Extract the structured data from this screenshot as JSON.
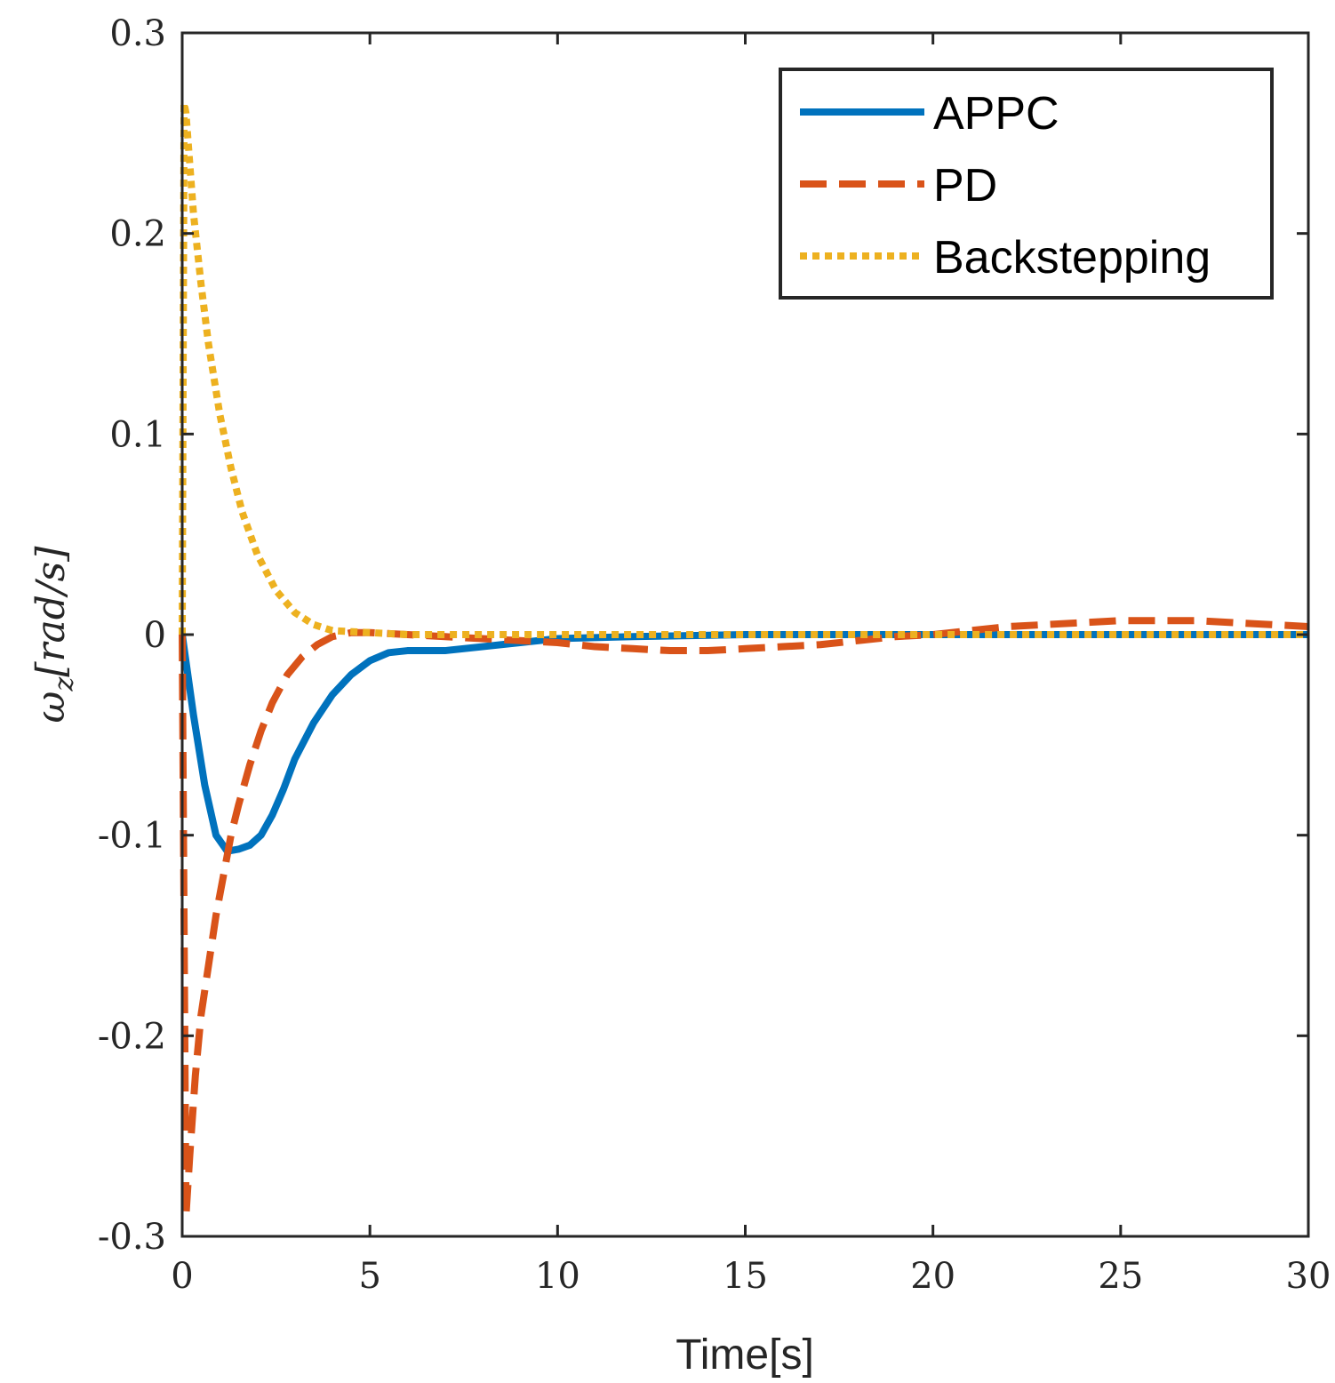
{
  "chart_data": {
    "type": "line",
    "title": "",
    "xlabel": "Time[s]",
    "ylabel": "ω_z[rad/s]",
    "ylabel_parts": {
      "symbol": "ω",
      "subscript": "z",
      "units": "[rad/s]"
    },
    "xlim": [
      0,
      30
    ],
    "ylim": [
      -0.3,
      0.3
    ],
    "xticks": [
      0,
      5,
      10,
      15,
      20,
      25,
      30
    ],
    "xtick_labels": [
      "0",
      "5",
      "10",
      "15",
      "20",
      "25",
      "30"
    ],
    "yticks": [
      -0.3,
      -0.2,
      -0.1,
      0,
      0.1,
      0.2,
      0.3
    ],
    "ytick_labels": [
      "-0.3",
      "-0.2",
      "-0.1",
      "0",
      "0.1",
      "0.2",
      "0.3"
    ],
    "grid": false,
    "legend_position": "top-right",
    "series": [
      {
        "name": "APPC",
        "color": "#0072BD",
        "style": "solid",
        "x": [
          0,
          0.3,
          0.6,
          0.9,
          1.2,
          1.5,
          1.8,
          2.1,
          2.4,
          2.7,
          3.0,
          3.5,
          4.0,
          4.5,
          5.0,
          5.5,
          6.0,
          7.0,
          8.0,
          9.0,
          10.0,
          12.0,
          15.0,
          18.0,
          20.0,
          22.0,
          25.0,
          28.0,
          30.0
        ],
        "values": [
          0,
          -0.04,
          -0.075,
          -0.1,
          -0.108,
          -0.107,
          -0.105,
          -0.1,
          -0.09,
          -0.077,
          -0.062,
          -0.044,
          -0.03,
          -0.02,
          -0.013,
          -0.009,
          -0.008,
          -0.008,
          -0.006,
          -0.004,
          -0.002,
          -0.001,
          0.0,
          0.0,
          0.0,
          0.0,
          0.0,
          0.0,
          0.0
        ]
      },
      {
        "name": "PD",
        "color": "#D95319",
        "style": "dashed",
        "x": [
          0,
          0.1,
          0.2,
          0.35,
          0.5,
          0.7,
          0.9,
          1.1,
          1.3,
          1.5,
          1.8,
          2.1,
          2.4,
          2.8,
          3.2,
          3.6,
          4.0,
          4.5,
          5.0,
          6.0,
          7.0,
          8.0,
          9.0,
          10.0,
          11.0,
          12.0,
          13.0,
          14.0,
          15.0,
          16.0,
          17.0,
          18.0,
          19.0,
          20.0,
          21.0,
          22.0,
          23.0,
          24.0,
          25.0,
          26.0,
          27.0,
          28.0,
          29.0,
          30.0
        ],
        "values": [
          0,
          -0.29,
          -0.26,
          -0.22,
          -0.19,
          -0.165,
          -0.14,
          -0.12,
          -0.1,
          -0.085,
          -0.065,
          -0.048,
          -0.034,
          -0.02,
          -0.011,
          -0.005,
          -0.001,
          0.001,
          0.001,
          0.0,
          -0.001,
          -0.002,
          -0.003,
          -0.004,
          -0.006,
          -0.007,
          -0.008,
          -0.008,
          -0.007,
          -0.006,
          -0.005,
          -0.003,
          -0.001,
          0.0,
          0.002,
          0.004,
          0.005,
          0.006,
          0.007,
          0.007,
          0.007,
          0.006,
          0.005,
          0.004
        ]
      },
      {
        "name": "Backstepping",
        "color": "#EDB120",
        "style": "dotted",
        "x": [
          0,
          0.05,
          0.1,
          0.2,
          0.3,
          0.5,
          0.7,
          1.0,
          1.3,
          1.6,
          2.0,
          2.5,
          3.0,
          3.5,
          4.0,
          5.0,
          6.0,
          7.0,
          8.0,
          10.0,
          15.0,
          20.0,
          25.0,
          30.0
        ],
        "values": [
          0,
          0.265,
          0.26,
          0.235,
          0.21,
          0.175,
          0.145,
          0.11,
          0.083,
          0.061,
          0.04,
          0.022,
          0.011,
          0.005,
          0.002,
          0.001,
          0.0,
          0.0,
          0.0,
          0.0,
          0.0,
          0.0,
          0.0,
          0.0
        ]
      }
    ]
  }
}
